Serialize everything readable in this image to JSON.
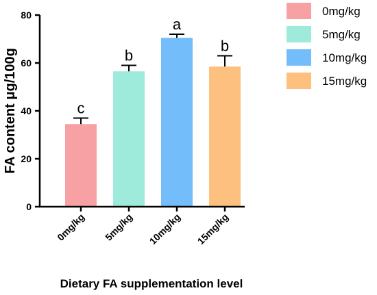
{
  "chart_data": {
    "type": "bar",
    "ylabel": "FA content μg/100g",
    "xlabel": "Dietary FA supplementation level",
    "ylim": [
      0,
      80
    ],
    "yticks": [
      0,
      20,
      40,
      60,
      80
    ],
    "grid": false,
    "legend_position": "top-right",
    "categories": [
      "0mg/kg",
      "5mg/kg",
      "10mg/kg",
      "15mg/kg"
    ],
    "values": [
      34.5,
      56.5,
      70.5,
      58.5
    ],
    "errors": [
      2.5,
      2.5,
      1.5,
      4.5
    ],
    "significance_letters": [
      "c",
      "b",
      "a",
      "b"
    ],
    "colors": [
      "#f8a1a4",
      "#9eeadb",
      "#73bdfa",
      "#fdc07f"
    ],
    "legend": [
      "0mg/kg",
      "5mg/kg",
      "10mg/kg",
      "15mg/kg"
    ]
  }
}
